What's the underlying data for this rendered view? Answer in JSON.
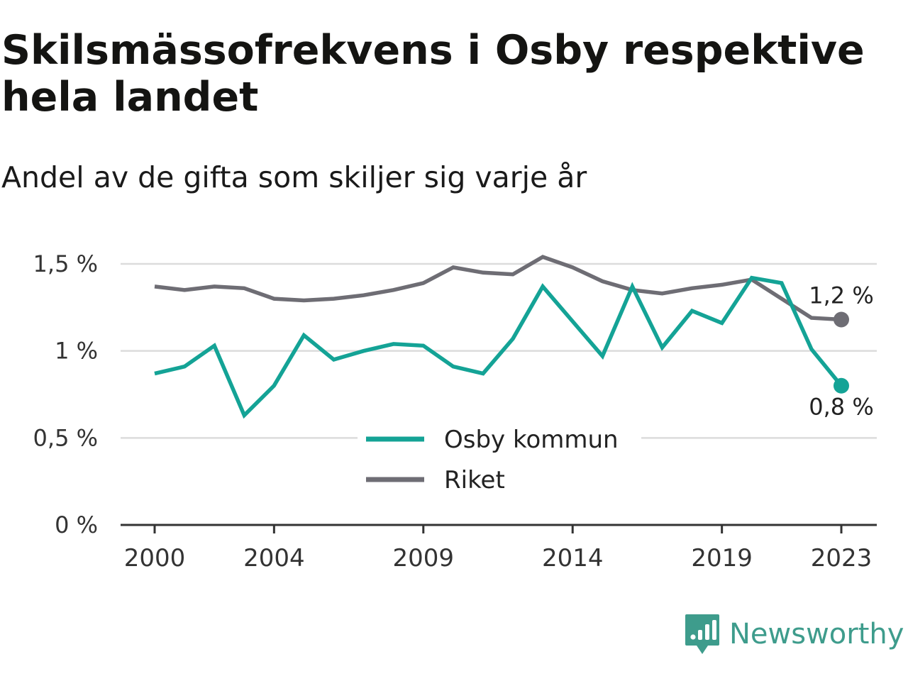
{
  "title": "Skilsmässofrekvens i Osby respektive hela landet",
  "subtitle": "Andel av de gifta som skiljer sig varje år",
  "brand": {
    "name": "Newsworthy",
    "icon": "newsworthy-logo-icon",
    "color": "#3e9c8c"
  },
  "chart_data": {
    "type": "line",
    "title": "Skilsmässofrekvens i Osby respektive hela landet",
    "subtitle": "Andel av de gifta som skiljer sig varje år",
    "xlabel": "",
    "ylabel": "",
    "x": [
      2000,
      2001,
      2002,
      2003,
      2004,
      2005,
      2006,
      2007,
      2008,
      2009,
      2010,
      2011,
      2012,
      2013,
      2014,
      2015,
      2016,
      2017,
      2018,
      2019,
      2020,
      2021,
      2022,
      2023
    ],
    "x_tick_labels": [
      "2000",
      "2004",
      "2009",
      "2014",
      "2019",
      "2023"
    ],
    "x_ticks": [
      2000,
      2004,
      2009,
      2014,
      2019,
      2023
    ],
    "xlim": [
      2000,
      2023
    ],
    "ylim": [
      0,
      1.5
    ],
    "y_ticks": [
      0,
      0.5,
      1,
      1.5
    ],
    "y_tick_labels": [
      "0 %",
      "0,5 %",
      "1 %",
      "1,5 %"
    ],
    "grid": "horizontal",
    "legend": "inside-bottom-center",
    "series": [
      {
        "name": "Osby kommun",
        "color": "#14a396",
        "end_label": "0,8 %",
        "values": [
          0.87,
          0.91,
          1.03,
          0.63,
          0.8,
          1.09,
          0.95,
          1.0,
          1.04,
          1.03,
          0.91,
          0.87,
          1.07,
          1.37,
          1.17,
          0.97,
          1.37,
          1.02,
          1.23,
          1.16,
          1.42,
          1.39,
          1.01,
          0.8
        ]
      },
      {
        "name": "Riket",
        "color": "#6e6d74",
        "end_label": "1,2 %",
        "values": [
          1.37,
          1.35,
          1.37,
          1.36,
          1.3,
          1.29,
          1.3,
          1.32,
          1.35,
          1.39,
          1.48,
          1.45,
          1.44,
          1.54,
          1.48,
          1.4,
          1.35,
          1.33,
          1.36,
          1.38,
          1.41,
          1.3,
          1.19,
          1.18
        ]
      }
    ]
  }
}
